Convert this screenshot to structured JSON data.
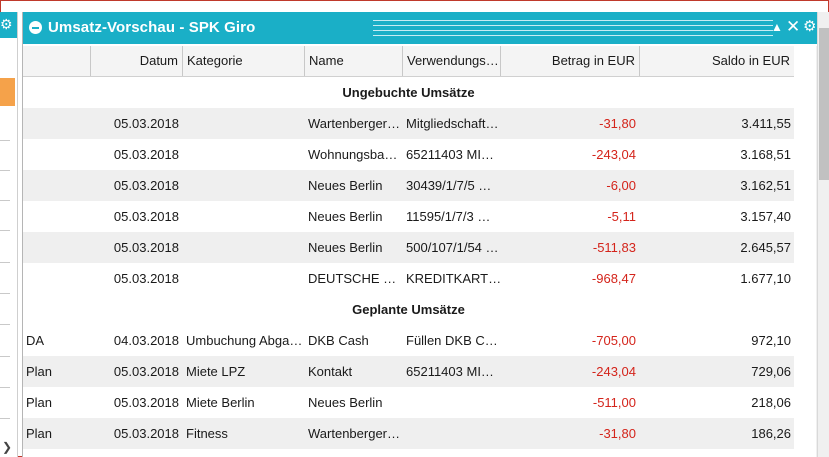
{
  "window": {
    "title": "Umsatz-Vorschau - SPK Giro",
    "icons": [
      "minus-circle-icon",
      "sort-asc-icon",
      "close-icon",
      "gear-icon"
    ],
    "accent_color": "#1aafc7"
  },
  "columns": {
    "type": "",
    "datum": "Datum",
    "kategorie": "Kategorie",
    "name": "Name",
    "verwendung": "Verwendungs…",
    "betrag": "Betrag in EUR",
    "saldo": "Saldo in EUR"
  },
  "sections": {
    "ungebucht": "Ungebuchte Umsätze",
    "geplant": "Geplante Umsätze"
  },
  "ungebucht_rows": [
    {
      "type": "",
      "datum": "05.03.2018",
      "kategorie": "",
      "name": "Wartenberger…",
      "verwendung": "Mitgliedschaft…",
      "betrag": "-31,80",
      "saldo": "3.411,55"
    },
    {
      "type": "",
      "datum": "05.03.2018",
      "kategorie": "",
      "name": "Wohnungsba…",
      "verwendung": "65211403 MI…",
      "betrag": "-243,04",
      "saldo": "3.168,51"
    },
    {
      "type": "",
      "datum": "05.03.2018",
      "kategorie": "",
      "name": "Neues Berlin",
      "verwendung": "30439/1/7/5 …",
      "betrag": "-6,00",
      "saldo": "3.162,51"
    },
    {
      "type": "",
      "datum": "05.03.2018",
      "kategorie": "",
      "name": "Neues Berlin",
      "verwendung": "11595/1/7/3 …",
      "betrag": "-5,11",
      "saldo": "3.157,40"
    },
    {
      "type": "",
      "datum": "05.03.2018",
      "kategorie": "",
      "name": "Neues Berlin",
      "verwendung": "500/107/1/54 …",
      "betrag": "-511,83",
      "saldo": "2.645,57"
    },
    {
      "type": "",
      "datum": "05.03.2018",
      "kategorie": "",
      "name": "DEUTSCHE …",
      "verwendung": "KREDITKART…",
      "betrag": "-968,47",
      "saldo": "1.677,10"
    }
  ],
  "geplant_rows": [
    {
      "type": "DA",
      "datum": "04.03.2018",
      "kategorie": "Umbuchung Abga…",
      "name": "DKB Cash",
      "verwendung": "Füllen DKB C…",
      "betrag": "-705,00",
      "saldo": "972,10"
    },
    {
      "type": "Plan",
      "datum": "05.03.2018",
      "kategorie": "Miete LPZ",
      "name": "Kontakt",
      "verwendung": "65211403 MI…",
      "betrag": "-243,04",
      "saldo": "729,06"
    },
    {
      "type": "Plan",
      "datum": "05.03.2018",
      "kategorie": "Miete Berlin",
      "name": "Neues Berlin",
      "verwendung": "",
      "betrag": "-511,00",
      "saldo": "218,06"
    },
    {
      "type": "Plan",
      "datum": "05.03.2018",
      "kategorie": "Fitness",
      "name": "Wartenberger…",
      "verwendung": "",
      "betrag": "-31,80",
      "saldo": "186,26"
    }
  ]
}
